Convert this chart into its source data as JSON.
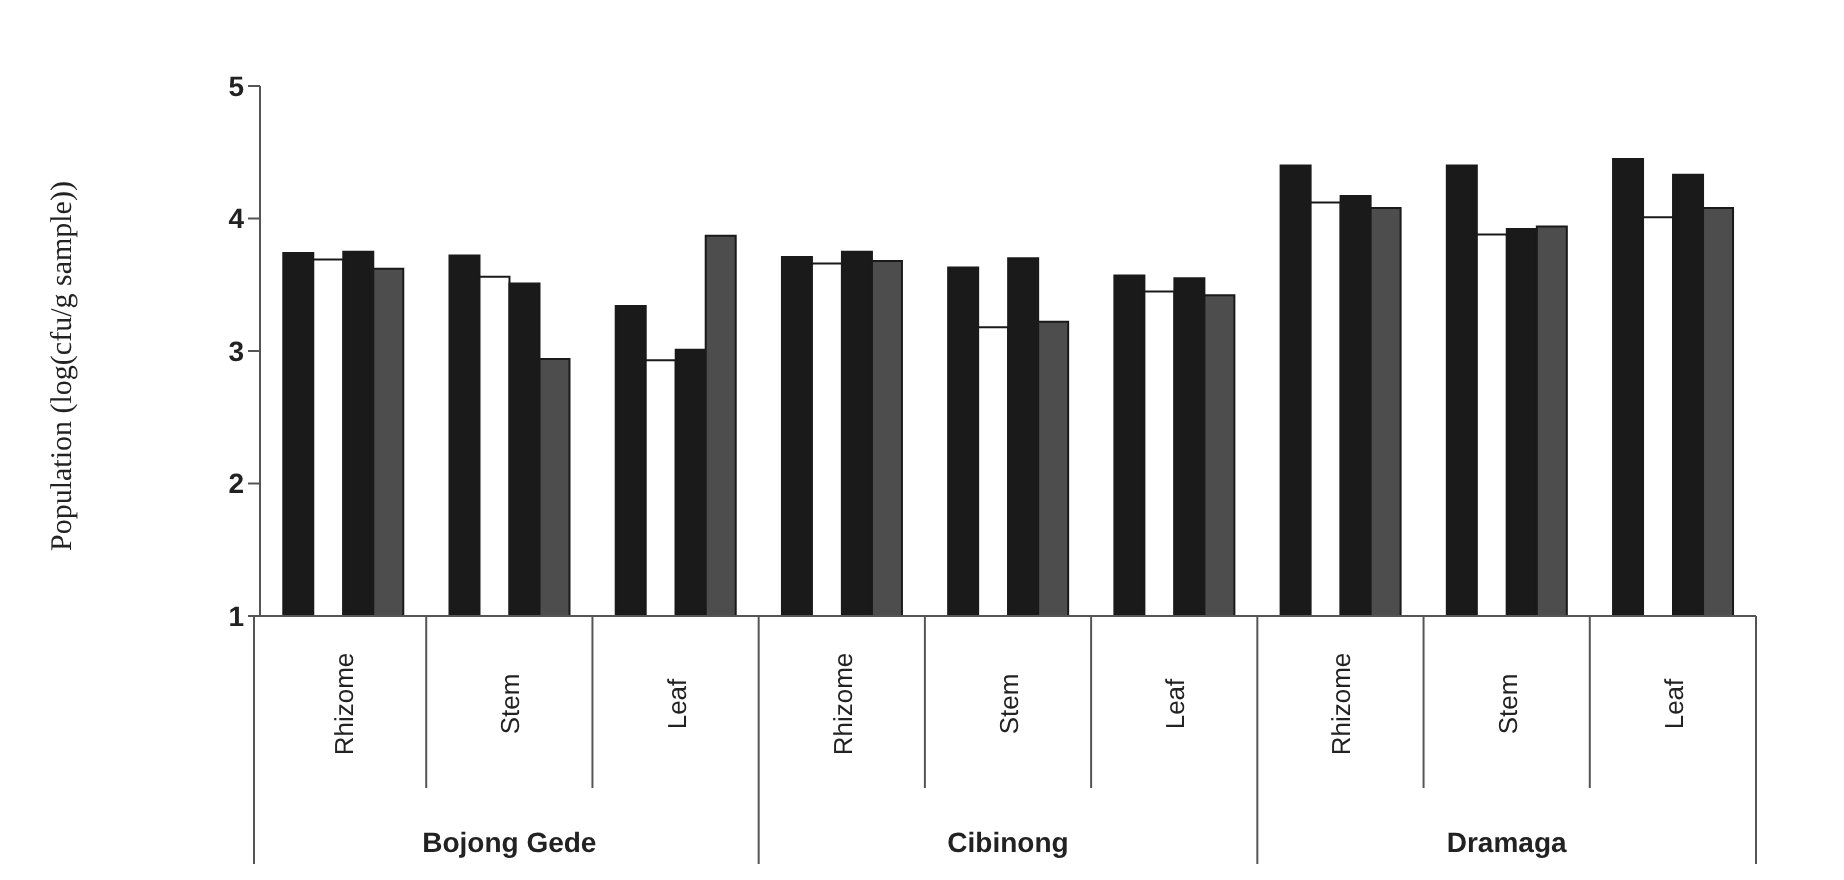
{
  "chart_data": {
    "type": "bar",
    "ylabel": "Population (log(cfu/g sample))",
    "categories": [
      "Rhizome",
      "Stem",
      "Leaf",
      "Rhizome",
      "Stem",
      "Leaf",
      "Rhizome",
      "Stem",
      "Leaf"
    ],
    "annotations": [
      "Bojong Gede",
      "Cibinong",
      "Dramaga"
    ],
    "series": [
      {
        "color": "#1a1a1a",
        "values": [
          3.74,
          3.72,
          3.34,
          3.71,
          3.63,
          3.57,
          4.4,
          4.4,
          4.45
        ]
      },
      {
        "color": "#ffffff",
        "values": [
          3.69,
          3.56,
          2.93,
          3.66,
          3.18,
          3.45,
          4.12,
          3.88,
          4.01
        ]
      },
      {
        "color": "#1a1a1a",
        "values": [
          3.75,
          3.51,
          3.01,
          3.75,
          3.7,
          3.55,
          4.17,
          3.92,
          4.33
        ]
      },
      {
        "color": "#4d4d4d",
        "values": [
          3.62,
          2.94,
          3.87,
          3.68,
          3.22,
          3.42,
          4.08,
          3.94,
          4.08
        ]
      }
    ],
    "ylim": [
      1,
      5
    ],
    "yticks": [
      1,
      2,
      3,
      4,
      5
    ],
    "grid": false,
    "legend": false
  }
}
